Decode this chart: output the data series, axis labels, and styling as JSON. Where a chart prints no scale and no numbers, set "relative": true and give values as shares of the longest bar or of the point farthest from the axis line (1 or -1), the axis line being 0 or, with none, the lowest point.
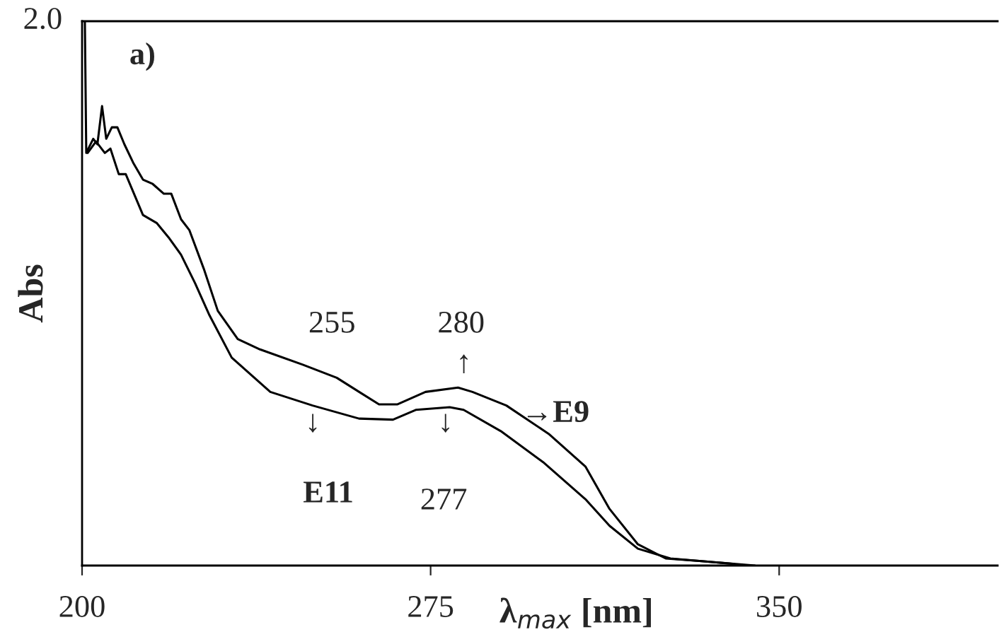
{
  "chart_data": {
    "type": "line",
    "relative": true,
    "xlabel": "λ$_{max}$ [nm]",
    "ylabel": "Abs",
    "xlim": [
      200,
      397
    ],
    "xticks": [
      200,
      275,
      350
    ],
    "grid": false,
    "legend": false,
    "marker": "none",
    "line_style": "solid",
    "annotations": [
      "2.0",
      "a)",
      "255",
      "↓",
      "E11",
      "280",
      "↑",
      "↓",
      "277",
      "→E9"
    ],
    "series": [
      {
        "color": "#000000",
        "x": [
          200.6,
          200.9,
          202.4,
          203.3,
          204.3,
          205.2,
          206.4,
          207.6,
          209.1,
          211.0,
          213.1,
          215.2,
          217.6,
          219.2,
          221.3,
          223.1,
          226.2,
          229.2,
          233.5,
          238.3,
          247.5,
          254.8,
          263.9,
          267.8,
          273.9,
          280.9,
          284.0,
          291.3,
          300.4,
          308.3,
          313.5,
          319.6,
          325.6,
          333.3,
          344.8
        ],
        "values": [
          1.0,
          0.758,
          0.784,
          0.774,
          0.844,
          0.784,
          0.805,
          0.805,
          0.774,
          0.74,
          0.709,
          0.701,
          0.683,
          0.683,
          0.636,
          0.616,
          0.545,
          0.468,
          0.416,
          0.397,
          0.369,
          0.345,
          0.296,
          0.296,
          0.319,
          0.327,
          0.319,
          0.294,
          0.242,
          0.182,
          0.104,
          0.039,
          0.013,
          0.008,
          0.0
        ]
      },
      {
        "color": "#000000",
        "x": [
          201.2,
          203.0,
          204.9,
          206.1,
          207.9,
          209.4,
          213.1,
          216.1,
          218.6,
          221.3,
          224.3,
          227.4,
          232.2,
          240.5,
          249.6,
          259.6,
          266.9,
          271.8,
          279.1,
          282.1,
          290.1,
          299.2,
          308.3,
          313.5,
          319.6,
          326.6,
          340.3
        ],
        "values": [
          0.758,
          0.779,
          0.758,
          0.766,
          0.719,
          0.719,
          0.644,
          0.629,
          0.603,
          0.571,
          0.519,
          0.46,
          0.382,
          0.319,
          0.294,
          0.27,
          0.268,
          0.286,
          0.291,
          0.286,
          0.247,
          0.19,
          0.122,
          0.073,
          0.031,
          0.013,
          0.003
        ]
      }
    ]
  }
}
